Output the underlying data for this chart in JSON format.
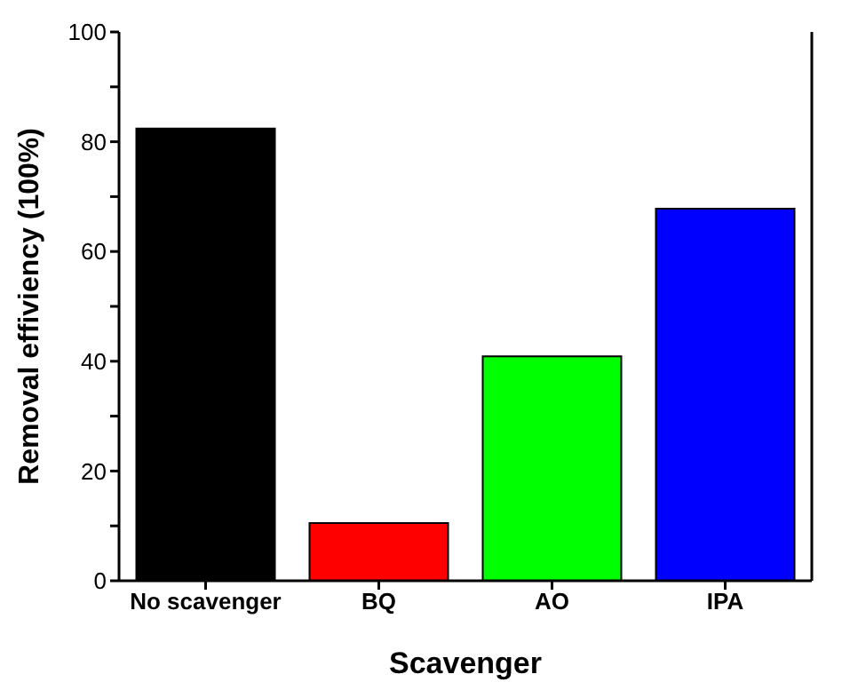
{
  "chart_data": {
    "type": "bar",
    "xlabel": "Scavenger",
    "ylabel": "Removal effiviency (100%)",
    "categories": [
      "No scavenger",
      "BQ",
      "AO",
      "IPA"
    ],
    "values": [
      82.4,
      10.5,
      40.9,
      67.8
    ],
    "colors": [
      "#000000",
      "#ff0000",
      "#00ff00",
      "#0000ff"
    ],
    "ylim": [
      0,
      100
    ],
    "yticks": [
      0,
      {
        "value": 10,
        "label": null
      },
      20,
      {
        "value": 30,
        "label": null
      },
      40,
      {
        "value": 50,
        "label": null
      },
      60,
      {
        "value": 70,
        "label": null
      },
      80,
      {
        "value": 90,
        "label": null
      },
      100
    ],
    "grid": false
  }
}
